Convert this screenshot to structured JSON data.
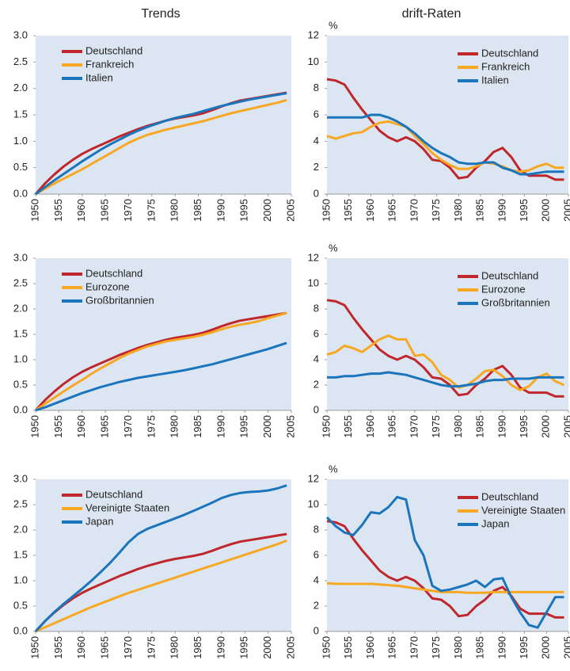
{
  "headers": [
    "Trends",
    "drift-Raten"
  ],
  "chart_data": [
    {
      "type": "line",
      "legend": "upper left",
      "x": [
        1950,
        1952,
        1954,
        1956,
        1958,
        1960,
        1962,
        1964,
        1966,
        1968,
        1970,
        1972,
        1974,
        1976,
        1978,
        1980,
        1982,
        1984,
        1986,
        1988,
        1990,
        1992,
        1994,
        1996,
        1998,
        2000,
        2002,
        2004
      ],
      "xlim": [
        1950,
        2005
      ],
      "xticks": [
        1950,
        1955,
        1960,
        1965,
        1970,
        1975,
        1980,
        1985,
        1990,
        1995,
        2000,
        2005
      ],
      "ylim": [
        0,
        3
      ],
      "yticks": [
        {
          "value": 0,
          "label": "0.0"
        },
        0.5,
        {
          "value": 1,
          "label": "1.0"
        },
        1.5,
        {
          "value": 2,
          "label": "2.0"
        },
        2.5,
        {
          "value": 3,
          "label": "3.0"
        }
      ],
      "series": [
        {
          "name": "Deutschland",
          "color": "#c0272d",
          "values": [
            0,
            0.2,
            0.37,
            0.52,
            0.65,
            0.76,
            0.85,
            0.93,
            1.01,
            1.09,
            1.16,
            1.23,
            1.29,
            1.34,
            1.39,
            1.43,
            1.46,
            1.49,
            1.53,
            1.59,
            1.66,
            1.72,
            1.77,
            1.8,
            1.83,
            1.86,
            1.89,
            1.92
          ]
        },
        {
          "name": "Frankreich",
          "color": "#f7a823",
          "values": [
            0,
            0.1,
            0.2,
            0.29,
            0.38,
            0.47,
            0.57,
            0.67,
            0.77,
            0.87,
            0.97,
            1.05,
            1.12,
            1.17,
            1.22,
            1.26,
            1.3,
            1.34,
            1.38,
            1.43,
            1.48,
            1.53,
            1.57,
            1.61,
            1.65,
            1.69,
            1.73,
            1.78
          ]
        },
        {
          "name": "Italien",
          "color": "#1a75bc",
          "values": [
            0,
            0.13,
            0.26,
            0.38,
            0.5,
            0.62,
            0.73,
            0.84,
            0.94,
            1.03,
            1.12,
            1.2,
            1.27,
            1.33,
            1.39,
            1.44,
            1.48,
            1.52,
            1.57,
            1.62,
            1.67,
            1.71,
            1.75,
            1.79,
            1.82,
            1.85,
            1.88,
            1.91
          ]
        }
      ]
    },
    {
      "type": "line",
      "legend": "upper right",
      "ylabel": "%",
      "x": [
        1950,
        1952,
        1954,
        1956,
        1958,
        1960,
        1962,
        1964,
        1966,
        1968,
        1970,
        1972,
        1974,
        1976,
        1978,
        1980,
        1982,
        1984,
        1986,
        1988,
        1990,
        1992,
        1994,
        1996,
        1998,
        2000,
        2002,
        2004
      ],
      "xlim": [
        1950,
        2005
      ],
      "xticks": [
        1950,
        1955,
        1960,
        1965,
        1970,
        1975,
        1980,
        1985,
        1990,
        1995,
        2000,
        2005
      ],
      "ylim": [
        0,
        12
      ],
      "yticks": [
        0,
        2,
        4,
        6,
        8,
        10,
        12
      ],
      "series": [
        {
          "name": "Deutschland",
          "color": "#c0272d",
          "values": [
            8.7,
            8.6,
            8.3,
            7.3,
            6.4,
            5.6,
            4.8,
            4.3,
            4.0,
            4.3,
            4.0,
            3.4,
            2.6,
            2.5,
            2.0,
            1.2,
            1.3,
            2.0,
            2.5,
            3.2,
            3.5,
            2.8,
            1.8,
            1.4,
            1.4,
            1.4,
            1.1,
            1.1
          ]
        },
        {
          "name": "Frankreich",
          "color": "#f7a823",
          "values": [
            4.4,
            4.2,
            4.4,
            4.6,
            4.7,
            5.1,
            5.4,
            5.5,
            5.3,
            5.1,
            4.4,
            3.8,
            3.1,
            2.6,
            2.2,
            1.9,
            1.9,
            2.1,
            2.4,
            2.3,
            2.1,
            1.8,
            1.7,
            1.8,
            2.1,
            2.3,
            2.0,
            2.0
          ]
        },
        {
          "name": "Italien",
          "color": "#1a75bc",
          "values": [
            5.8,
            5.8,
            5.8,
            5.8,
            5.8,
            6.0,
            6.0,
            5.8,
            5.5,
            5.1,
            4.6,
            4.0,
            3.5,
            3.1,
            2.8,
            2.4,
            2.3,
            2.3,
            2.4,
            2.4,
            2.0,
            1.8,
            1.5,
            1.5,
            1.6,
            1.7,
            1.7,
            1.7
          ]
        }
      ]
    },
    {
      "type": "line",
      "legend": "upper left",
      "x": [
        1950,
        1952,
        1954,
        1956,
        1958,
        1960,
        1962,
        1964,
        1966,
        1968,
        1970,
        1972,
        1974,
        1976,
        1978,
        1980,
        1982,
        1984,
        1986,
        1988,
        1990,
        1992,
        1994,
        1996,
        1998,
        2000,
        2002,
        2004
      ],
      "xlim": [
        1950,
        2005
      ],
      "xticks": [
        1950,
        1955,
        1960,
        1965,
        1970,
        1975,
        1980,
        1985,
        1990,
        1995,
        2000,
        2005
      ],
      "ylim": [
        0,
        3
      ],
      "yticks": [
        {
          "value": 0,
          "label": "0.0"
        },
        0.5,
        {
          "value": 1,
          "label": "1.0"
        },
        1.5,
        {
          "value": 2,
          "label": "2.0"
        },
        2.5,
        {
          "value": 3,
          "label": "3.0"
        }
      ],
      "series": [
        {
          "name": "Deutschland",
          "color": "#c0272d",
          "values": [
            0,
            0.2,
            0.37,
            0.52,
            0.65,
            0.76,
            0.85,
            0.93,
            1.01,
            1.09,
            1.16,
            1.23,
            1.29,
            1.34,
            1.39,
            1.43,
            1.46,
            1.49,
            1.53,
            1.59,
            1.66,
            1.72,
            1.77,
            1.8,
            1.83,
            1.86,
            1.89,
            1.92
          ]
        },
        {
          "name": "Eurozone",
          "color": "#f7a823",
          "values": [
            0,
            0.13,
            0.25,
            0.37,
            0.49,
            0.6,
            0.72,
            0.83,
            0.93,
            1.03,
            1.12,
            1.19,
            1.26,
            1.31,
            1.36,
            1.39,
            1.42,
            1.45,
            1.49,
            1.54,
            1.6,
            1.65,
            1.69,
            1.72,
            1.76,
            1.82,
            1.87,
            1.92
          ]
        },
        {
          "name": "Großbritannien",
          "color": "#1a75bc",
          "values": [
            0,
            0.06,
            0.13,
            0.2,
            0.27,
            0.34,
            0.4,
            0.46,
            0.51,
            0.56,
            0.6,
            0.64,
            0.67,
            0.7,
            0.73,
            0.76,
            0.79,
            0.83,
            0.87,
            0.91,
            0.96,
            1.01,
            1.06,
            1.11,
            1.16,
            1.21,
            1.27,
            1.33
          ]
        }
      ]
    },
    {
      "type": "line",
      "legend": "upper right",
      "ylabel": "%",
      "x": [
        1950,
        1952,
        1954,
        1956,
        1958,
        1960,
        1962,
        1964,
        1966,
        1968,
        1970,
        1972,
        1974,
        1976,
        1978,
        1980,
        1982,
        1984,
        1986,
        1988,
        1990,
        1992,
        1994,
        1996,
        1998,
        2000,
        2002,
        2004
      ],
      "xlim": [
        1950,
        2005
      ],
      "xticks": [
        1950,
        1955,
        1960,
        1965,
        1970,
        1975,
        1980,
        1985,
        1990,
        1995,
        2000,
        2005
      ],
      "ylim": [
        0,
        12
      ],
      "yticks": [
        0,
        2,
        4,
        6,
        8,
        10,
        12
      ],
      "series": [
        {
          "name": "Deutschland",
          "color": "#c0272d",
          "values": [
            8.7,
            8.6,
            8.3,
            7.3,
            6.4,
            5.6,
            4.8,
            4.3,
            4.0,
            4.3,
            4.0,
            3.4,
            2.6,
            2.5,
            2.0,
            1.2,
            1.3,
            2.0,
            2.5,
            3.2,
            3.5,
            2.8,
            1.8,
            1.4,
            1.4,
            1.4,
            1.1,
            1.1
          ]
        },
        {
          "name": "Eurozone",
          "color": "#f7a823",
          "values": [
            4.4,
            4.6,
            5.1,
            4.9,
            4.6,
            5.1,
            5.6,
            5.9,
            5.6,
            5.6,
            4.3,
            4.4,
            3.8,
            2.8,
            2.4,
            1.8,
            2.0,
            2.5,
            3.1,
            3.2,
            2.7,
            2.0,
            1.6,
            1.9,
            2.6,
            2.9,
            2.3,
            2.0
          ]
        },
        {
          "name": "Großbritannien",
          "color": "#1a75bc",
          "values": [
            2.6,
            2.6,
            2.7,
            2.7,
            2.8,
            2.9,
            2.9,
            3.0,
            2.9,
            2.8,
            2.6,
            2.4,
            2.2,
            2.0,
            1.9,
            1.9,
            2.0,
            2.1,
            2.3,
            2.4,
            2.4,
            2.5,
            2.5,
            2.5,
            2.6,
            2.6,
            2.6,
            2.6
          ]
        }
      ]
    },
    {
      "type": "line",
      "legend": "upper left",
      "x": [
        1950,
        1952,
        1954,
        1956,
        1958,
        1960,
        1962,
        1964,
        1966,
        1968,
        1970,
        1972,
        1974,
        1976,
        1978,
        1980,
        1982,
        1984,
        1986,
        1988,
        1990,
        1992,
        1994,
        1996,
        1998,
        2000,
        2002,
        2004
      ],
      "xlim": [
        1950,
        2005
      ],
      "xticks": [
        1950,
        1955,
        1960,
        1965,
        1970,
        1975,
        1980,
        1985,
        1990,
        1995,
        2000,
        2005
      ],
      "ylim": [
        0,
        3
      ],
      "yticks": [
        {
          "value": 0,
          "label": "0.0"
        },
        0.5,
        {
          "value": 1,
          "label": "1.0"
        },
        1.5,
        {
          "value": 2,
          "label": "2.0"
        },
        2.5,
        {
          "value": 3,
          "label": "3.0"
        }
      ],
      "series": [
        {
          "name": "Deutschland",
          "color": "#c0272d",
          "values": [
            0,
            0.2,
            0.37,
            0.52,
            0.65,
            0.76,
            0.85,
            0.93,
            1.01,
            1.09,
            1.16,
            1.23,
            1.29,
            1.34,
            1.39,
            1.43,
            1.46,
            1.49,
            1.53,
            1.59,
            1.66,
            1.72,
            1.77,
            1.8,
            1.83,
            1.86,
            1.89,
            1.92
          ]
        },
        {
          "name": "Vereinigte Staaten",
          "color": "#f7a823",
          "values": [
            0,
            0.08,
            0.16,
            0.24,
            0.32,
            0.4,
            0.48,
            0.55,
            0.62,
            0.69,
            0.76,
            0.82,
            0.88,
            0.94,
            1.0,
            1.06,
            1.12,
            1.18,
            1.24,
            1.3,
            1.36,
            1.42,
            1.48,
            1.54,
            1.6,
            1.66,
            1.72,
            1.79
          ]
        },
        {
          "name": "Japan",
          "color": "#1a75bc",
          "values": [
            0,
            0.2,
            0.38,
            0.54,
            0.69,
            0.84,
            1.0,
            1.17,
            1.35,
            1.55,
            1.76,
            1.92,
            2.02,
            2.09,
            2.16,
            2.23,
            2.3,
            2.38,
            2.46,
            2.54,
            2.63,
            2.69,
            2.73,
            2.75,
            2.76,
            2.78,
            2.82,
            2.88
          ]
        }
      ]
    },
    {
      "type": "line",
      "legend": "upper right",
      "ylabel": "%",
      "x": [
        1950,
        1952,
        1954,
        1956,
        1958,
        1960,
        1962,
        1964,
        1966,
        1968,
        1970,
        1972,
        1974,
        1976,
        1978,
        1980,
        1982,
        1984,
        1986,
        1988,
        1990,
        1992,
        1994,
        1996,
        1998,
        2000,
        2002,
        2004
      ],
      "xlim": [
        1950,
        2005
      ],
      "xticks": [
        1950,
        1955,
        1960,
        1965,
        1970,
        1975,
        1980,
        1985,
        1990,
        1995,
        2000,
        2005
      ],
      "ylim": [
        0,
        12
      ],
      "yticks": [
        0,
        2,
        4,
        6,
        8,
        10,
        12
      ],
      "series": [
        {
          "name": "Deutschland",
          "color": "#c0272d",
          "values": [
            8.7,
            8.6,
            8.3,
            7.3,
            6.4,
            5.6,
            4.8,
            4.3,
            4.0,
            4.3,
            4.0,
            3.4,
            2.6,
            2.5,
            2.0,
            1.2,
            1.3,
            2.0,
            2.5,
            3.2,
            3.5,
            2.8,
            1.8,
            1.4,
            1.4,
            1.4,
            1.1,
            1.1
          ]
        },
        {
          "name": "Vereinigte Staaten",
          "color": "#f7a823",
          "values": [
            3.8,
            3.75,
            3.75,
            3.75,
            3.75,
            3.75,
            3.7,
            3.65,
            3.6,
            3.5,
            3.4,
            3.3,
            3.2,
            3.1,
            3.1,
            3.1,
            3.05,
            3.05,
            3.05,
            3.1,
            3.1,
            3.1,
            3.1,
            3.1,
            3.1,
            3.1,
            3.1,
            3.1
          ]
        },
        {
          "name": "Japan",
          "color": "#1a75bc",
          "values": [
            9.0,
            8.3,
            7.8,
            7.6,
            8.4,
            9.4,
            9.3,
            9.8,
            10.6,
            10.4,
            7.2,
            6.0,
            3.6,
            3.2,
            3.3,
            3.5,
            3.7,
            4.0,
            3.5,
            4.1,
            4.2,
            2.7,
            1.5,
            0.5,
            0.3,
            1.5,
            2.7,
            2.7
          ]
        }
      ]
    }
  ]
}
